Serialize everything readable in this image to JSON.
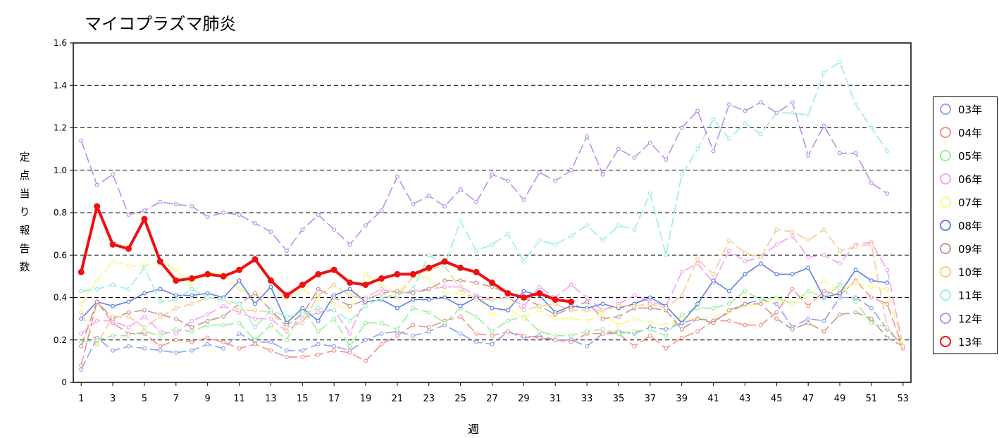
{
  "title": "マイコプラズマ肺炎",
  "chart_data": {
    "type": "line",
    "title": "マイコプラズマ肺炎",
    "xlabel": "週",
    "ylabel": "定点当り報告数",
    "xlim": [
      0.5,
      53.5
    ],
    "ylim": [
      0,
      1.6
    ],
    "yticks": [
      "0",
      "0.2",
      "0.4",
      "0.6",
      "0.8",
      "1.0",
      "1.2",
      "1.4",
      "1.6"
    ],
    "ytick_values": [
      0,
      0.2,
      0.4,
      0.6,
      0.8,
      1.0,
      1.2,
      1.4,
      1.6
    ],
    "xticks": [
      "1",
      "3",
      "5",
      "7",
      "9",
      "11",
      "13",
      "15",
      "17",
      "19",
      "21",
      "23",
      "25",
      "27",
      "29",
      "31",
      "33",
      "35",
      "37",
      "39",
      "41",
      "43",
      "45",
      "47",
      "49",
      "51",
      "53"
    ],
    "xtick_values": [
      1,
      3,
      5,
      7,
      9,
      11,
      13,
      15,
      17,
      19,
      21,
      23,
      25,
      27,
      29,
      31,
      33,
      35,
      37,
      39,
      41,
      43,
      45,
      47,
      49,
      51,
      53
    ],
    "grid": "horizontal dashed",
    "legend_position": "right",
    "series": [
      {
        "name": "03年",
        "color": "#8ea3f4",
        "values": [
          0.06,
          0.21,
          0.15,
          0.17,
          0.16,
          0.15,
          0.14,
          0.15,
          0.18,
          0.16,
          0.23,
          0.19,
          0.19,
          0.15,
          0.15,
          0.18,
          0.17,
          0.15,
          0.2,
          0.23,
          0.24,
          0.22,
          0.24,
          0.27,
          0.23,
          0.19,
          0.18,
          0.24,
          0.21,
          0.22,
          0.2,
          0.2,
          0.17,
          0.23,
          0.24,
          0.23,
          0.26,
          0.25,
          0.28,
          0.3,
          0.29,
          0.33,
          0.37,
          0.39,
          0.37,
          0.26,
          0.3,
          0.29,
          0.4,
          0.4,
          0.35,
          0.25,
          0.17
        ]
      },
      {
        "name": "04年",
        "color": "#f4908c",
        "values": [
          0.08,
          0.38,
          0.28,
          0.23,
          0.23,
          0.17,
          0.2,
          0.19,
          0.21,
          0.19,
          0.16,
          0.18,
          0.15,
          0.12,
          0.12,
          0.13,
          0.15,
          0.14,
          0.1,
          0.18,
          0.22,
          0.27,
          0.26,
          0.29,
          0.31,
          0.23,
          0.22,
          0.24,
          0.22,
          0.21,
          0.2,
          0.19,
          0.23,
          0.23,
          0.23,
          0.17,
          0.22,
          0.16,
          0.21,
          0.24,
          0.29,
          0.29,
          0.27,
          0.27,
          0.33,
          0.44,
          0.36,
          0.43,
          0.41,
          0.48,
          0.4,
          0.37,
          0.16
        ]
      },
      {
        "name": "05年",
        "color": "#98ee98",
        "values": [
          0.19,
          0.2,
          0.22,
          0.22,
          0.24,
          0.22,
          0.25,
          0.24,
          0.27,
          0.27,
          0.28,
          0.2,
          0.27,
          0.2,
          0.35,
          0.24,
          0.3,
          0.17,
          0.28,
          0.28,
          0.25,
          0.35,
          0.33,
          0.28,
          0.35,
          0.31,
          0.24,
          0.29,
          0.31,
          0.24,
          0.22,
          0.22,
          0.24,
          0.25,
          0.23,
          0.24,
          0.25,
          0.22,
          0.32,
          0.35,
          0.35,
          0.37,
          0.43,
          0.39,
          0.4,
          0.37,
          0.43,
          0.4,
          0.46,
          0.38,
          0.28,
          0.26,
          0.17
        ]
      },
      {
        "name": "06年",
        "color": "#f6a0f0",
        "values": [
          0.23,
          0.29,
          0.29,
          0.26,
          0.31,
          0.24,
          0.23,
          0.29,
          0.32,
          0.36,
          0.33,
          0.3,
          0.3,
          0.24,
          0.3,
          0.33,
          0.34,
          0.23,
          0.4,
          0.44,
          0.42,
          0.43,
          0.44,
          0.45,
          0.45,
          0.41,
          0.39,
          0.4,
          0.36,
          0.45,
          0.4,
          0.46,
          0.4,
          0.34,
          0.37,
          0.41,
          0.38,
          0.36,
          0.52,
          0.56,
          0.47,
          0.62,
          0.57,
          0.59,
          0.65,
          0.69,
          0.59,
          0.6,
          0.56,
          0.65,
          0.66,
          0.53,
          0.17
        ]
      },
      {
        "name": "07年",
        "color": "#f8f880",
        "values": [
          0.37,
          0.48,
          0.57,
          0.55,
          0.55,
          0.57,
          0.53,
          0.46,
          0.52,
          0.51,
          0.44,
          0.41,
          0.44,
          0.4,
          0.44,
          0.39,
          0.37,
          0.34,
          0.51,
          0.46,
          0.42,
          0.5,
          0.49,
          0.42,
          0.42,
          0.4,
          0.32,
          0.35,
          0.3,
          0.34,
          0.3,
          0.3,
          0.29,
          0.32,
          0.27,
          0.3,
          0.28,
          0.27,
          0.3,
          0.3,
          0.31,
          0.33,
          0.36,
          0.37,
          0.39,
          0.37,
          0.4,
          0.48,
          0.43,
          0.47,
          0.45,
          0.44,
          0.17
        ]
      },
      {
        "name": "08年",
        "color": "#5b80e8",
        "values": [
          0.3,
          0.38,
          0.36,
          0.38,
          0.42,
          0.44,
          0.41,
          0.41,
          0.42,
          0.4,
          0.48,
          0.37,
          0.45,
          0.28,
          0.35,
          0.29,
          0.41,
          0.44,
          0.38,
          0.39,
          0.35,
          0.39,
          0.39,
          0.4,
          0.36,
          0.4,
          0.35,
          0.34,
          0.43,
          0.41,
          0.33,
          0.36,
          0.35,
          0.37,
          0.35,
          0.37,
          0.4,
          0.36,
          0.28,
          0.37,
          0.48,
          0.43,
          0.51,
          0.56,
          0.51,
          0.51,
          0.54,
          0.4,
          0.42,
          0.53,
          0.48,
          0.47
        ]
      },
      {
        "name": "09年",
        "color": "#c8968c",
        "values": [
          0.17,
          0.38,
          0.3,
          0.33,
          0.34,
          0.32,
          0.3,
          0.26,
          0.29,
          0.31,
          0.37,
          0.42,
          0.34,
          0.27,
          0.32,
          0.44,
          0.4,
          0.36,
          0.39,
          0.42,
          0.43,
          0.42,
          0.44,
          0.48,
          0.48,
          0.47,
          0.45,
          0.42,
          0.4,
          0.36,
          0.32,
          0.35,
          0.38,
          0.3,
          0.31,
          0.35,
          0.35,
          0.34,
          0.25,
          0.3,
          0.28,
          0.34,
          0.37,
          0.37,
          0.3,
          0.25,
          0.28,
          0.24,
          0.32,
          0.33,
          0.3,
          0.21,
          0.17
        ]
      },
      {
        "name": "10年",
        "color": "#f8c890",
        "values": [
          0.33,
          0.18,
          0.31,
          0.31,
          0.26,
          0.31,
          0.35,
          0.37,
          0.4,
          0.39,
          0.34,
          0.34,
          0.33,
          0.26,
          0.28,
          0.41,
          0.46,
          0.41,
          0.39,
          0.42,
          0.4,
          0.5,
          0.53,
          0.55,
          0.44,
          0.39,
          0.39,
          0.4,
          0.34,
          0.36,
          0.37,
          0.34,
          0.34,
          0.34,
          0.36,
          0.36,
          0.37,
          0.35,
          0.41,
          0.58,
          0.51,
          0.67,
          0.61,
          0.59,
          0.72,
          0.71,
          0.67,
          0.72,
          0.62,
          0.64,
          0.65,
          0.26,
          0.17
        ]
      },
      {
        "name": "11年",
        "color": "#98f0d2",
        "values": [
          0.43,
          0.44,
          0.46,
          0.44,
          0.54,
          0.38,
          0.39,
          0.44,
          0.4,
          0.39,
          0.37,
          0.26,
          0.34,
          0.31,
          0.32,
          0.35,
          0.34,
          0.29,
          0.36,
          0.4,
          0.41,
          0.44,
          0.6,
          0.55,
          0.76,
          0.62,
          0.65,
          0.7,
          0.57,
          0.67,
          0.65,
          0.69,
          0.74,
          0.67,
          0.74,
          0.72,
          0.89,
          0.6,
          0.98,
          1.1,
          1.24,
          1.15,
          1.22,
          1.17,
          1.27,
          1.27,
          1.26,
          1.46,
          1.51,
          1.31,
          1.2,
          1.09
        ]
      },
      {
        "name": "12年",
        "color": "#b890ec",
        "values": [
          1.14,
          0.93,
          0.98,
          0.79,
          0.81,
          0.85,
          0.84,
          0.83,
          0.78,
          0.8,
          0.79,
          0.75,
          0.71,
          0.62,
          0.72,
          0.79,
          0.72,
          0.65,
          0.74,
          0.81,
          0.97,
          0.84,
          0.88,
          0.83,
          0.91,
          0.85,
          0.98,
          0.95,
          0.86,
          0.99,
          0.95,
          1.0,
          1.16,
          0.98,
          1.1,
          1.06,
          1.13,
          1.05,
          1.2,
          1.28,
          1.09,
          1.31,
          1.28,
          1.32,
          1.27,
          1.32,
          1.07,
          1.21,
          1.08,
          1.08,
          0.94,
          0.89
        ]
      },
      {
        "name": "13年",
        "color": "#ee1010",
        "values": [
          0.52,
          0.83,
          0.65,
          0.63,
          0.77,
          0.57,
          0.48,
          0.49,
          0.51,
          0.5,
          0.53,
          0.58,
          0.48,
          0.41,
          0.46,
          0.51,
          0.53,
          0.47,
          0.46,
          0.49,
          0.51,
          0.51,
          0.54,
          0.57,
          0.54,
          0.52,
          0.47,
          0.42,
          0.4,
          0.42,
          0.39,
          0.38
        ]
      }
    ]
  },
  "legend": {
    "items": [
      {
        "label": "03年",
        "color": "#8ea3f4"
      },
      {
        "label": "04年",
        "color": "#f4908c"
      },
      {
        "label": "05年",
        "color": "#98ee98"
      },
      {
        "label": "06年",
        "color": "#f6a0f0"
      },
      {
        "label": "07年",
        "color": "#f8f880"
      },
      {
        "label": "08年",
        "color": "#5b80e8"
      },
      {
        "label": "09年",
        "color": "#c8968c"
      },
      {
        "label": "10年",
        "color": "#f8c890"
      },
      {
        "label": "11年",
        "color": "#98f0d2"
      },
      {
        "label": "12年",
        "color": "#b890ec"
      },
      {
        "label": "13年",
        "color": "#ee1010"
      }
    ]
  }
}
